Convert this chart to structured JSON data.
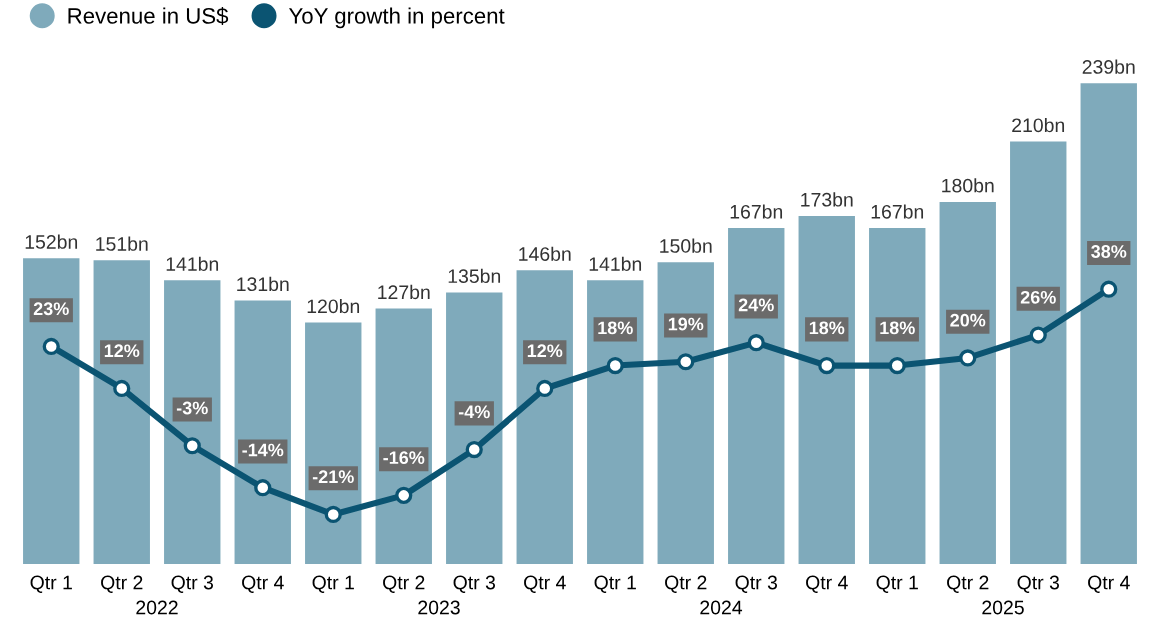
{
  "chart_data": {
    "type": "bar",
    "categories": [
      "Qtr 1",
      "Qtr 2",
      "Qtr 3",
      "Qtr 4",
      "Qtr 1",
      "Qtr 2",
      "Qtr 3",
      "Qtr 4",
      "Qtr 1",
      "Qtr 2",
      "Qtr 3",
      "Qtr 4",
      "Qtr 1",
      "Qtr 2",
      "Qtr 3",
      "Qtr 4"
    ],
    "series": [
      {
        "name": "Revenue in US$",
        "color": "#7faabb",
        "values": [
          152,
          151,
          141,
          131,
          120,
          127,
          135,
          146,
          141,
          150,
          167,
          173,
          167,
          180,
          210,
          239
        ],
        "value_labels": [
          "152bn",
          "151bn",
          "141bn",
          "131bn",
          "120bn",
          "127bn",
          "135bn",
          "146bn",
          "141bn",
          "150bn",
          "167bn",
          "173bn",
          "167bn",
          "180bn",
          "210bn",
          "239bn"
        ]
      },
      {
        "name": "YoY growth in percent",
        "type": "line",
        "axis": "y2",
        "color": "#0b5472",
        "values": [
          23,
          12,
          -3,
          -14,
          -21,
          -16,
          -4,
          12,
          18,
          19,
          24,
          18,
          18,
          20,
          26,
          38
        ],
        "value_labels": [
          "23%",
          "12%",
          "-3%",
          "-14%",
          "-21%",
          "-16%",
          "-4%",
          "12%",
          "18%",
          "19%",
          "24%",
          "18%",
          "18%",
          "20%",
          "26%",
          "38%"
        ]
      }
    ],
    "annotations": [
      "2022",
      "2023",
      "2024",
      "2025"
    ],
    "data_labels": true,
    "marker": "circle",
    "legend": "top left",
    "grid": false
  }
}
